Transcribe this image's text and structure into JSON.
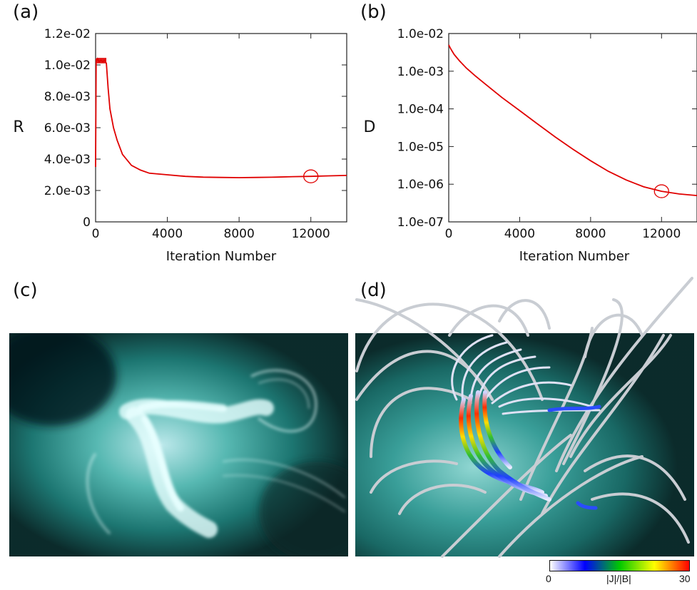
{
  "panels": {
    "a": "(a)",
    "b": "(b)",
    "c": "(c)",
    "d": "(d)"
  },
  "colorbar": {
    "min_label": "0",
    "max_label": "30",
    "title": "|J|/|B|",
    "colors": [
      "#ffffff",
      "#0000ff",
      "#00c800",
      "#ffff00",
      "#ff0000"
    ]
  },
  "colors": {
    "curve": "#e00000",
    "aia_dark": "#0b2a2a",
    "aia_mid": "#1f8f8a",
    "aia_bright": "#e8ffff"
  },
  "chart_data": [
    {
      "type": "line",
      "ylabel": "R",
      "xlabel": "Iteration Number",
      "xlim": [
        0,
        14000
      ],
      "ylim": [
        0,
        0.012
      ],
      "scale": "linear",
      "xticks": [
        0,
        4000,
        8000,
        12000
      ],
      "xtick_labels": [
        "0",
        "4000",
        "8000",
        "12000"
      ],
      "yticks": [
        0,
        0.002,
        0.004,
        0.006,
        0.008,
        0.01,
        0.012
      ],
      "ytick_labels": [
        "0",
        "2.0e-03",
        "4.0e-03",
        "6.0e-03",
        "8.0e-03",
        "1.0e-02",
        "1.2e-02"
      ],
      "series": [
        {
          "x": [
            0,
            30,
            60,
            100,
            200,
            300,
            400,
            500,
            600,
            700,
            800,
            1000,
            1200,
            1500,
            2000,
            2500,
            3000,
            4000,
            5000,
            6000,
            7000,
            8000,
            9000,
            10000,
            11000,
            12000,
            13000,
            14000
          ],
          "y": [
            0.0035,
            0.0104,
            0.0103,
            0.0104,
            0.0102,
            0.0103,
            0.0102,
            0.0103,
            0.0101,
            0.0085,
            0.0072,
            0.006,
            0.0052,
            0.0043,
            0.0036,
            0.0033,
            0.0031,
            0.003,
            0.0029,
            0.00285,
            0.00283,
            0.00282,
            0.00283,
            0.00285,
            0.00288,
            0.0029,
            0.00293,
            0.00296
          ]
        }
      ],
      "marker": {
        "x": 12000,
        "y": 0.0029
      }
    },
    {
      "type": "line",
      "ylabel": "D",
      "xlabel": "Iteration Number",
      "xlim": [
        0,
        14000
      ],
      "ylim": [
        1e-07,
        0.01
      ],
      "scale": "log",
      "xticks": [
        0,
        4000,
        8000,
        12000
      ],
      "xtick_labels": [
        "0",
        "4000",
        "8000",
        "12000"
      ],
      "yticks": [
        1e-07,
        1e-06,
        1e-05,
        0.0001,
        0.001,
        0.01
      ],
      "ytick_labels": [
        "1.0e-07",
        "1.0e-06",
        "1.0e-05",
        "1.0e-04",
        "1.0e-03",
        "1.0e-02"
      ],
      "series": [
        {
          "x": [
            0,
            100,
            300,
            600,
            1000,
            1500,
            2000,
            3000,
            4000,
            5000,
            6000,
            7000,
            8000,
            9000,
            10000,
            11000,
            12000,
            13000,
            14000
          ],
          "y": [
            0.005,
            0.004,
            0.0028,
            0.0019,
            0.0012,
            0.00075,
            0.00048,
            0.0002,
            9e-05,
            4e-05,
            1.8e-05,
            8.5e-06,
            4.2e-06,
            2.2e-06,
            1.3e-06,
            8.5e-07,
            6.5e-07,
            5.5e-07,
            5e-07
          ]
        }
      ],
      "marker": {
        "x": 12000,
        "y": 6.5e-07
      }
    }
  ]
}
